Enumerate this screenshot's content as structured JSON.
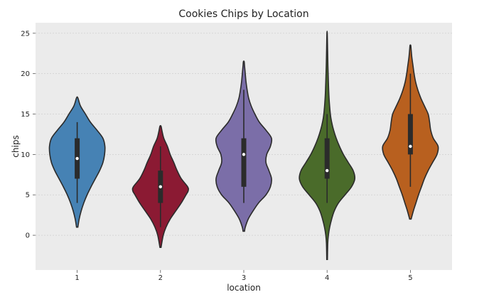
{
  "chart_data": {
    "type": "violin",
    "title": "Cookies Chips by Location",
    "xlabel": "location",
    "ylabel": "chips",
    "categories": [
      "1",
      "2",
      "3",
      "4",
      "5"
    ],
    "ylim": [
      -4.3,
      26.3
    ],
    "yticks": [
      0,
      5,
      10,
      15,
      20,
      25
    ],
    "grid": true,
    "colors": [
      "#4682b4",
      "#8b1a33",
      "#7b6ea8",
      "#4a6b2a",
      "#b8601f"
    ],
    "violins": [
      {
        "category": "1",
        "min": 1,
        "max": 17,
        "q1": 7,
        "median": 9.5,
        "q3": 12,
        "whisker_low": 4,
        "whisker_high": 14,
        "density": [
          [
            1,
            0.02
          ],
          [
            2,
            0.06
          ],
          [
            3,
            0.12
          ],
          [
            4,
            0.2
          ],
          [
            5,
            0.3
          ],
          [
            6,
            0.42
          ],
          [
            7,
            0.55
          ],
          [
            8,
            0.68
          ],
          [
            9,
            0.78
          ],
          [
            10,
            0.83
          ],
          [
            11,
            0.84
          ],
          [
            12,
            0.78
          ],
          [
            13,
            0.6
          ],
          [
            14,
            0.4
          ],
          [
            15,
            0.25
          ],
          [
            16,
            0.1
          ],
          [
            17,
            0.02
          ]
        ]
      },
      {
        "category": "2",
        "min": -1.5,
        "max": 13.5,
        "q1": 4,
        "median": 6,
        "q3": 8,
        "whisker_low": 1,
        "whisker_high": 11,
        "density": [
          [
            -1.5,
            0.02
          ],
          [
            0,
            0.1
          ],
          [
            1,
            0.2
          ],
          [
            2,
            0.35
          ],
          [
            3,
            0.55
          ],
          [
            4,
            0.75
          ],
          [
            5,
            0.92
          ],
          [
            5.5,
            1.0
          ],
          [
            6,
            0.98
          ],
          [
            7,
            0.75
          ],
          [
            8,
            0.6
          ],
          [
            9,
            0.48
          ],
          [
            10,
            0.35
          ],
          [
            11,
            0.25
          ],
          [
            12,
            0.12
          ],
          [
            13,
            0.05
          ],
          [
            13.5,
            0.02
          ]
        ]
      },
      {
        "category": "3",
        "min": 0.5,
        "max": 21.5,
        "q1": 6,
        "median": 10,
        "q3": 12,
        "whisker_low": 4,
        "whisker_high": 18,
        "density": [
          [
            0.5,
            0.02
          ],
          [
            1,
            0.04
          ],
          [
            2,
            0.12
          ],
          [
            3,
            0.25
          ],
          [
            4,
            0.4
          ],
          [
            5,
            0.6
          ],
          [
            6,
            0.72
          ],
          [
            7,
            0.75
          ],
          [
            8,
            0.68
          ],
          [
            9,
            0.6
          ],
          [
            10,
            0.62
          ],
          [
            11,
            0.72
          ],
          [
            12,
            0.75
          ],
          [
            13,
            0.6
          ],
          [
            14,
            0.42
          ],
          [
            15,
            0.3
          ],
          [
            16,
            0.2
          ],
          [
            17,
            0.13
          ],
          [
            18,
            0.09
          ],
          [
            19,
            0.06
          ],
          [
            20,
            0.04
          ],
          [
            21,
            0.02
          ],
          [
            21.5,
            0.01
          ]
        ]
      },
      {
        "category": "4",
        "min": -3,
        "max": 25,
        "q1": 7,
        "median": 8,
        "q3": 12,
        "whisker_low": 4,
        "whisker_high": 15,
        "density": [
          [
            -3,
            0.01
          ],
          [
            -1,
            0.02
          ],
          [
            0,
            0.04
          ],
          [
            1,
            0.08
          ],
          [
            2,
            0.14
          ],
          [
            3,
            0.22
          ],
          [
            4,
            0.35
          ],
          [
            5,
            0.55
          ],
          [
            6,
            0.75
          ],
          [
            7,
            0.85
          ],
          [
            8,
            0.8
          ],
          [
            9,
            0.65
          ],
          [
            10,
            0.5
          ],
          [
            11,
            0.38
          ],
          [
            12,
            0.28
          ],
          [
            13,
            0.2
          ],
          [
            14,
            0.14
          ],
          [
            15,
            0.1
          ],
          [
            17,
            0.06
          ],
          [
            19,
            0.04
          ],
          [
            21,
            0.025
          ],
          [
            23,
            0.015
          ],
          [
            25,
            0.005
          ]
        ]
      },
      {
        "category": "5",
        "min": 2,
        "max": 23.5,
        "q1": 10,
        "median": 11,
        "q3": 15,
        "whisker_low": 6,
        "whisker_high": 20,
        "density": [
          [
            2,
            0.02
          ],
          [
            3,
            0.08
          ],
          [
            4,
            0.15
          ],
          [
            5,
            0.22
          ],
          [
            6,
            0.3
          ],
          [
            7,
            0.38
          ],
          [
            8,
            0.48
          ],
          [
            9,
            0.6
          ],
          [
            10,
            0.72
          ],
          [
            11,
            0.75
          ],
          [
            12,
            0.62
          ],
          [
            13,
            0.55
          ],
          [
            14,
            0.52
          ],
          [
            15,
            0.48
          ],
          [
            16,
            0.38
          ],
          [
            17,
            0.28
          ],
          [
            18,
            0.2
          ],
          [
            19,
            0.14
          ],
          [
            20,
            0.1
          ],
          [
            21,
            0.07
          ],
          [
            22,
            0.04
          ],
          [
            23,
            0.02
          ],
          [
            23.5,
            0.01
          ]
        ]
      }
    ]
  }
}
